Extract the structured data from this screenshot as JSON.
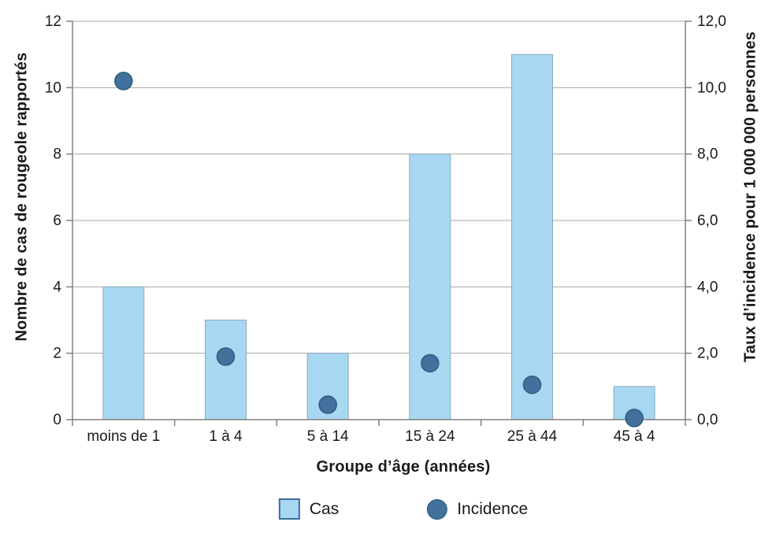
{
  "chart": {
    "left_axis": {
      "title": "Nombre de cas de rougeole rapportés",
      "tick_labels": [
        "0",
        "2",
        "4",
        "6",
        "8",
        "10",
        "12"
      ]
    },
    "right_axis": {
      "title": "Taux d’incidence pour 1 000 000 personnes",
      "tick_labels": [
        "0,0",
        "2,0",
        "4,0",
        "6,0",
        "8,0",
        "10,0",
        "12,0"
      ]
    },
    "x_axis": {
      "title": "Groupe d’âge (années)"
    },
    "legend": {
      "items": [
        {
          "label": "Cas",
          "swatch": "square"
        },
        {
          "label": "Incidence",
          "swatch": "circle"
        }
      ]
    }
  },
  "chart_data": {
    "type": "bar",
    "categories": [
      "moins de 1",
      "1 à 4",
      "5 à 14",
      "15 à 24",
      "25 à 44",
      "45 à 4"
    ],
    "series": [
      {
        "name": "Cas",
        "type": "bar",
        "axis": "left",
        "values": [
          4,
          3,
          2,
          8,
          11,
          1
        ]
      },
      {
        "name": "Incidence",
        "type": "scatter",
        "axis": "right",
        "values": [
          10.2,
          1.9,
          0.45,
          1.7,
          1.05,
          0.05
        ]
      }
    ],
    "title": "",
    "xlabel": "Groupe d’âge (années)",
    "ylabel_left": "Nombre de cas de rougeole rapportés",
    "ylabel_right": "Taux d’incidence pour 1 000 000 personnes",
    "ylim_left": [
      0,
      12
    ],
    "ylim_right": [
      0,
      12
    ],
    "ytick_step": 2,
    "grid": true,
    "legend_position": "bottom"
  },
  "colors": {
    "bar_fill": "#A8D7F2",
    "bar_border": "#8EA9BC",
    "dot_fill": "#41719C",
    "dot_border": "#2E5B80",
    "gridline": "#A6A6A6",
    "axis_line": "#808080",
    "text": "#1A1A1A"
  }
}
